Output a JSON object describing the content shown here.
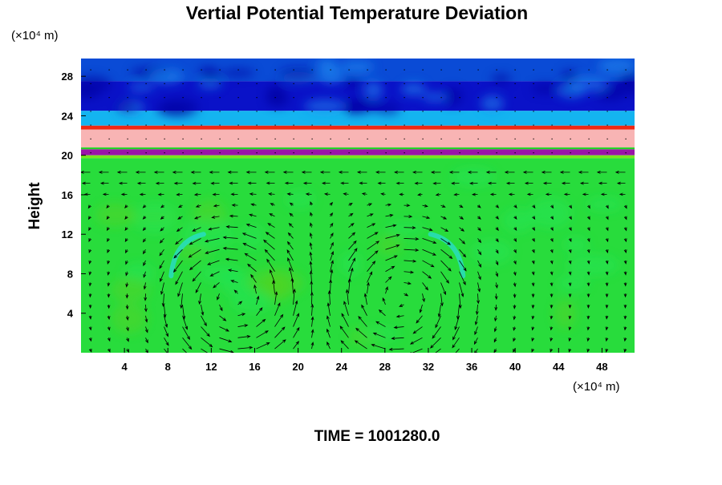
{
  "chart_data": {
    "type": "heatmap",
    "title": "Vertial Potential Temperature Deviation",
    "ylabel": "Height",
    "xlabel": "",
    "x_unit": "(×10⁴ m)",
    "y_unit": "(×10⁴ m)",
    "xlim": [
      0,
      51
    ],
    "ylim": [
      0,
      29.8
    ],
    "x_ticks": [
      4,
      8,
      12,
      16,
      20,
      24,
      28,
      32,
      36,
      40,
      44,
      48
    ],
    "y_ticks": [
      4,
      8,
      12,
      16,
      20,
      24,
      28
    ],
    "footer": "TIME = 1001280.0",
    "overlay": "wind vector arrows",
    "grid": false,
    "layers": [
      {
        "y0": 27.5,
        "y1": 29.8,
        "color": "#0a4bd6"
      },
      {
        "y0": 24.5,
        "y1": 27.5,
        "color": "#0a12c8"
      },
      {
        "y0": 23.0,
        "y1": 24.5,
        "color": "#14b4f0"
      },
      {
        "y0": 22.6,
        "y1": 23.0,
        "color": "#f02814"
      },
      {
        "y0": 20.8,
        "y1": 22.6,
        "color": "#f8b4b4"
      },
      {
        "y0": 20.6,
        "y1": 20.8,
        "color": "#28d228"
      },
      {
        "y0": 20.0,
        "y1": 20.6,
        "color": "#9a14a8"
      },
      {
        "y0": 19.7,
        "y1": 20.0,
        "color": "#78e61e"
      },
      {
        "y0": 0.0,
        "y1": 19.7,
        "color": "#28dc3c"
      }
    ],
    "vortices": [
      {
        "cx": 14.0,
        "cy": 5.5,
        "rx": 6.0,
        "ry": 6.5,
        "dir": 1
      },
      {
        "cx": 29.5,
        "cy": 5.5,
        "rx": 6.0,
        "ry": 6.5,
        "dir": -1
      }
    ],
    "highlight_color": "#28dcd2",
    "base_color": "#28dc3c"
  }
}
